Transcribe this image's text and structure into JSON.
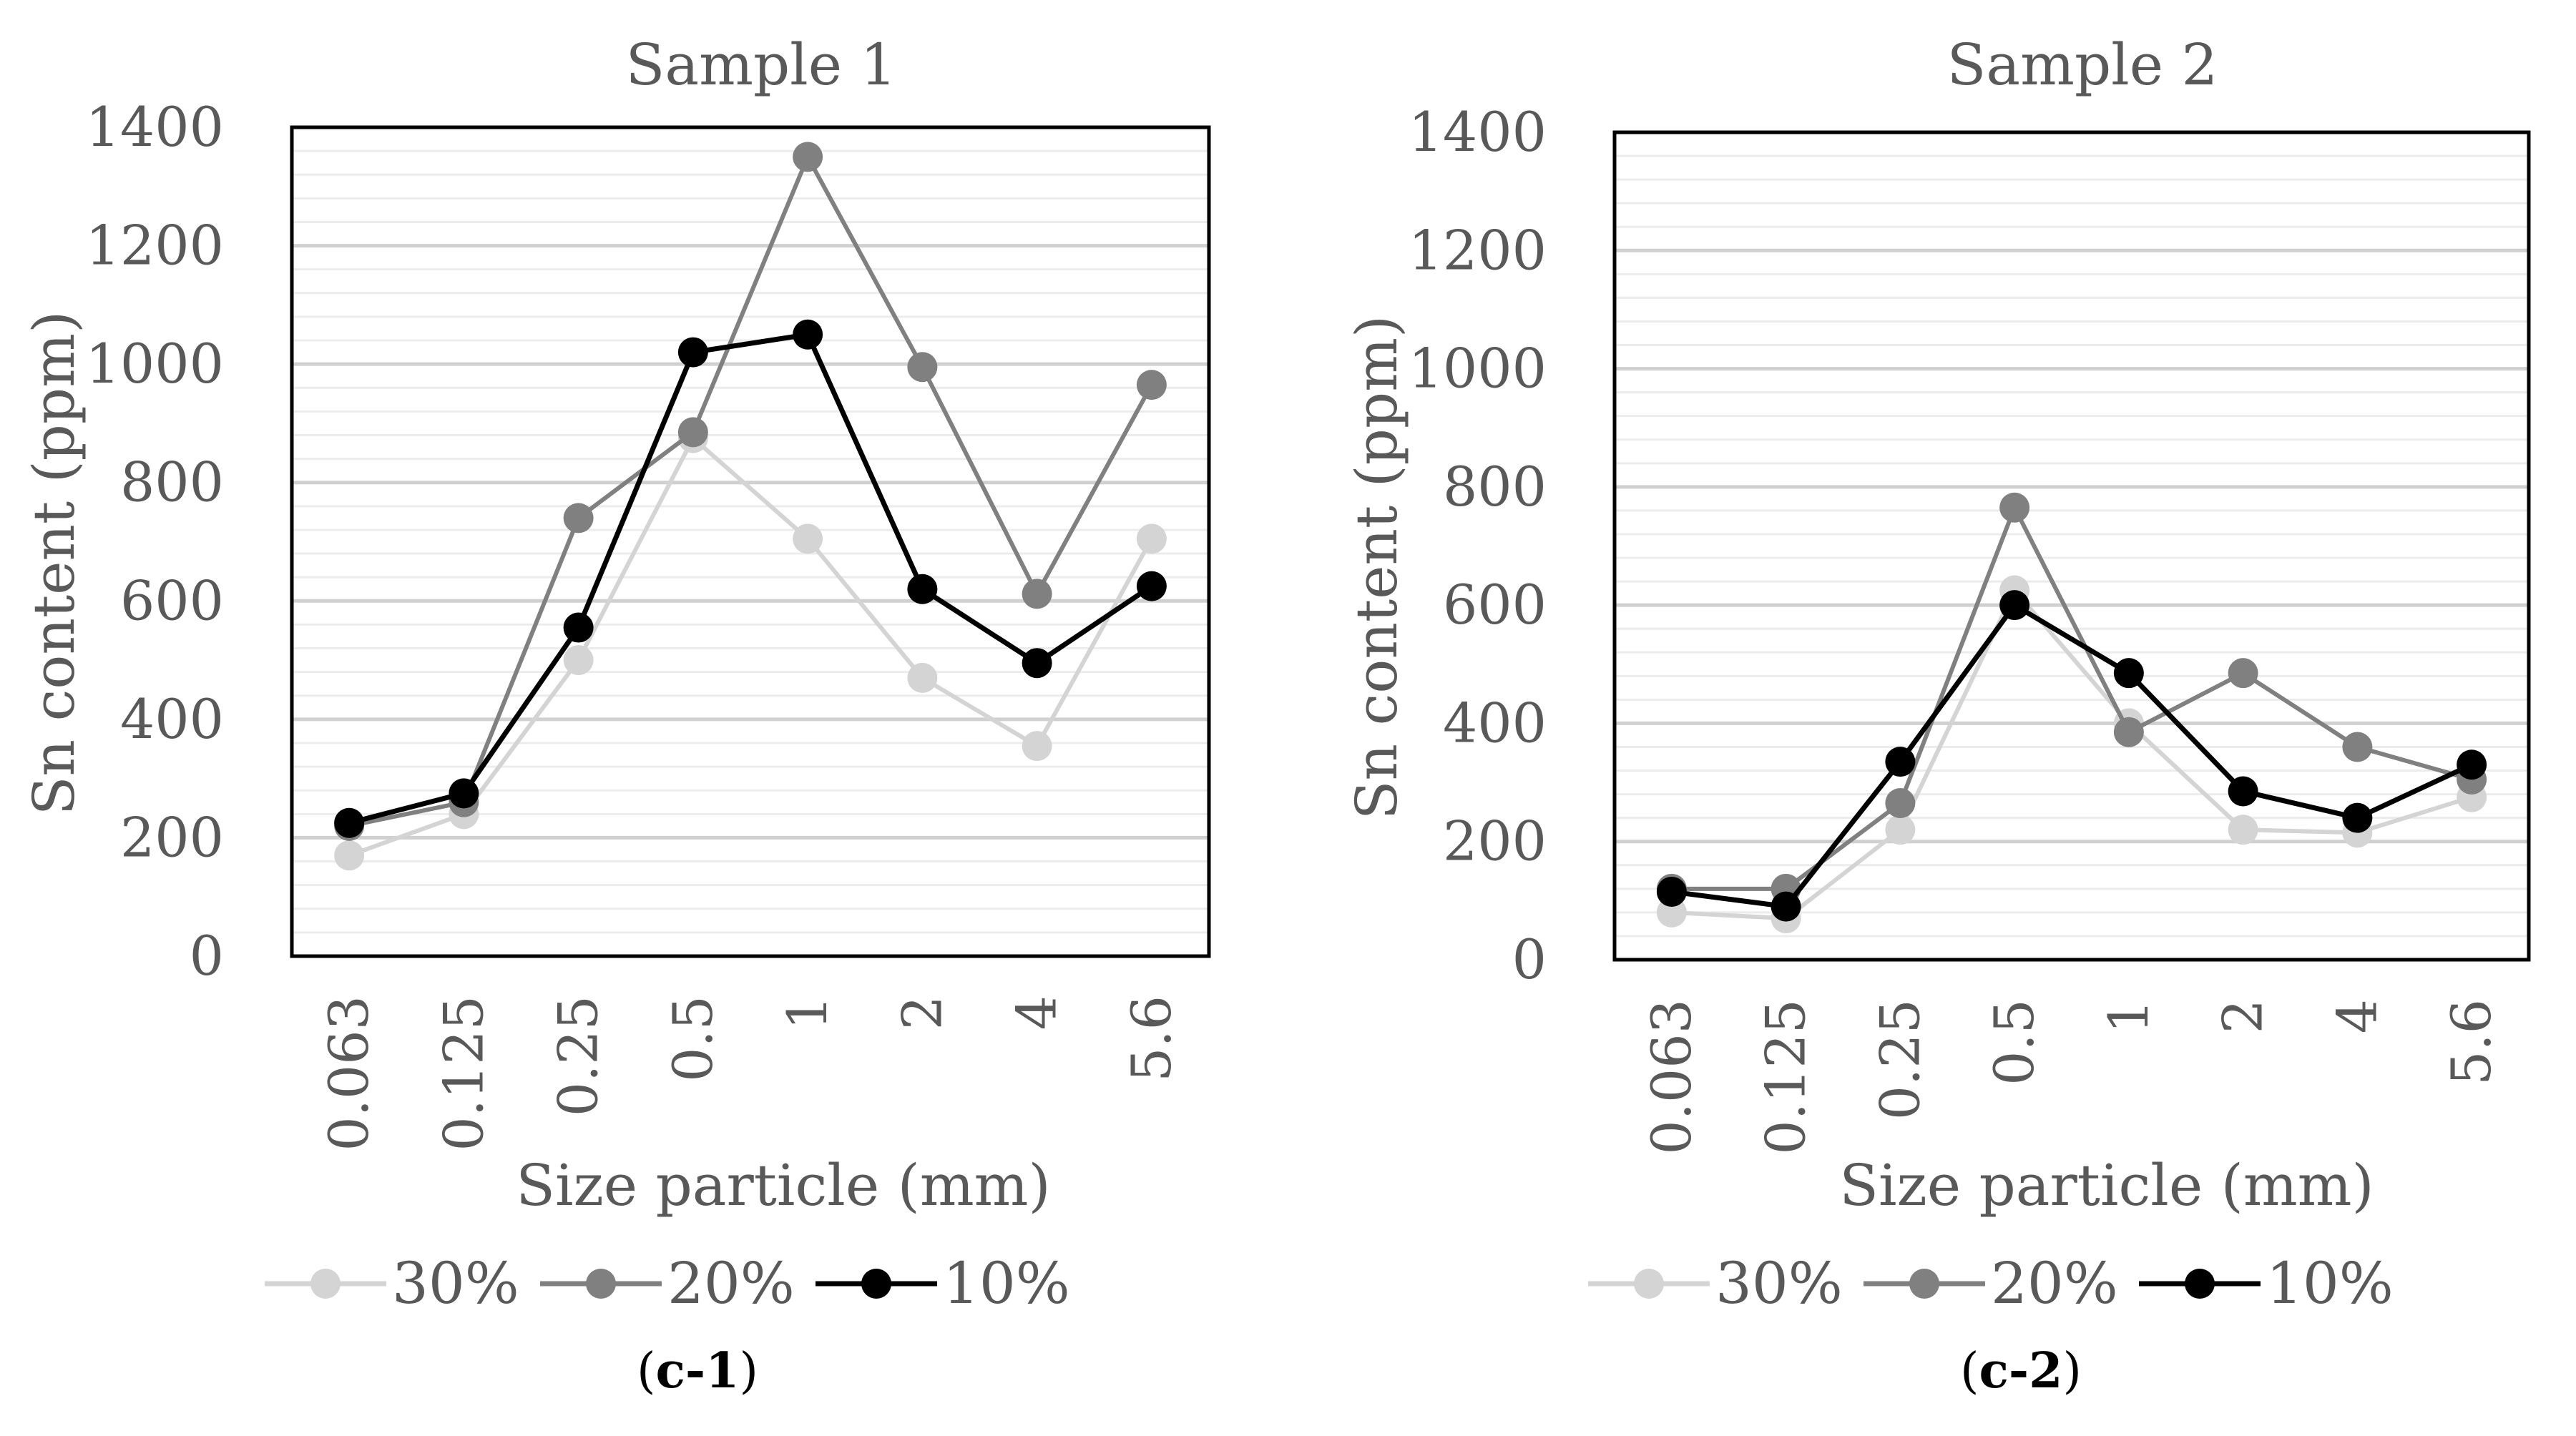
{
  "chart_data": [
    {
      "type": "line",
      "title": "Sample 1",
      "xlabel": "Size particle (mm)",
      "ylabel": "Sn content (ppm)",
      "caption_open": "(",
      "caption_bold": "c-1",
      "caption_close": ")",
      "categories": [
        "0.063",
        "0.125",
        "0.25",
        "0.5",
        "1",
        "2",
        "4",
        "5.6"
      ],
      "ylim": [
        0,
        1400
      ],
      "yticks": [
        0,
        200,
        400,
        600,
        800,
        1000,
        1200,
        1400
      ],
      "minor_grid_step": 40,
      "series": [
        {
          "name": "30%",
          "color": "#d4d4d4",
          "values": [
            170,
            240,
            500,
            875,
            705,
            470,
            355,
            705
          ]
        },
        {
          "name": "20%",
          "color": "#808080",
          "values": [
            220,
            260,
            740,
            885,
            1350,
            995,
            612,
            965
          ]
        },
        {
          "name": "10%",
          "color": "#000000",
          "values": [
            225,
            275,
            555,
            1020,
            1050,
            620,
            495,
            625
          ]
        }
      ]
    },
    {
      "type": "line",
      "title": "Sample 2",
      "xlabel": "Size particle (mm)",
      "ylabel": "Sn content (ppm)",
      "caption_open": "(",
      "caption_bold": "c-2",
      "caption_close": ")",
      "categories": [
        "0.063",
        "0.125",
        "0.25",
        "0.5",
        "1",
        "2",
        "4",
        "5.6"
      ],
      "ylim": [
        0,
        1400
      ],
      "yticks": [
        0,
        200,
        400,
        600,
        800,
        1000,
        1200,
        1400
      ],
      "minor_grid_step": 40,
      "series": [
        {
          "name": "30%",
          "color": "#d4d4d4",
          "values": [
            80,
            70,
            220,
            625,
            400,
            220,
            215,
            275
          ]
        },
        {
          "name": "20%",
          "color": "#808080",
          "values": [
            120,
            120,
            265,
            765,
            385,
            485,
            360,
            305
          ]
        },
        {
          "name": "10%",
          "color": "#000000",
          "values": [
            115,
            90,
            335,
            600,
            485,
            285,
            240,
            330
          ]
        }
      ]
    }
  ]
}
